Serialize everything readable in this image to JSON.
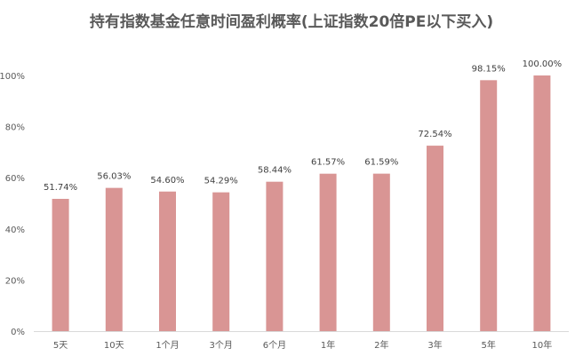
{
  "chart_data": {
    "type": "bar",
    "title": "持有指数基金任意时间盈利概率(上证指数20倍PE以下买入)",
    "categories": [
      "5天",
      "10天",
      "1个月",
      "3个月",
      "6个月",
      "1年",
      "2年",
      "3年",
      "5年",
      "10年"
    ],
    "values": [
      51.74,
      56.03,
      54.6,
      54.29,
      58.44,
      61.57,
      61.59,
      72.54,
      98.15,
      100.0
    ],
    "data_labels": [
      "51.74%",
      "56.03%",
      "54.60%",
      "54.29%",
      "58.44%",
      "61.57%",
      "61.59%",
      "72.54%",
      "98.15%",
      "100.00%"
    ],
    "yticks": [
      "0%",
      "20%",
      "40%",
      "60%",
      "80%",
      "100%"
    ],
    "ylim": [
      0,
      100
    ],
    "grid": false,
    "legend": "none",
    "bar_color": "#d99594",
    "axis_color": "#d9d9d9"
  }
}
